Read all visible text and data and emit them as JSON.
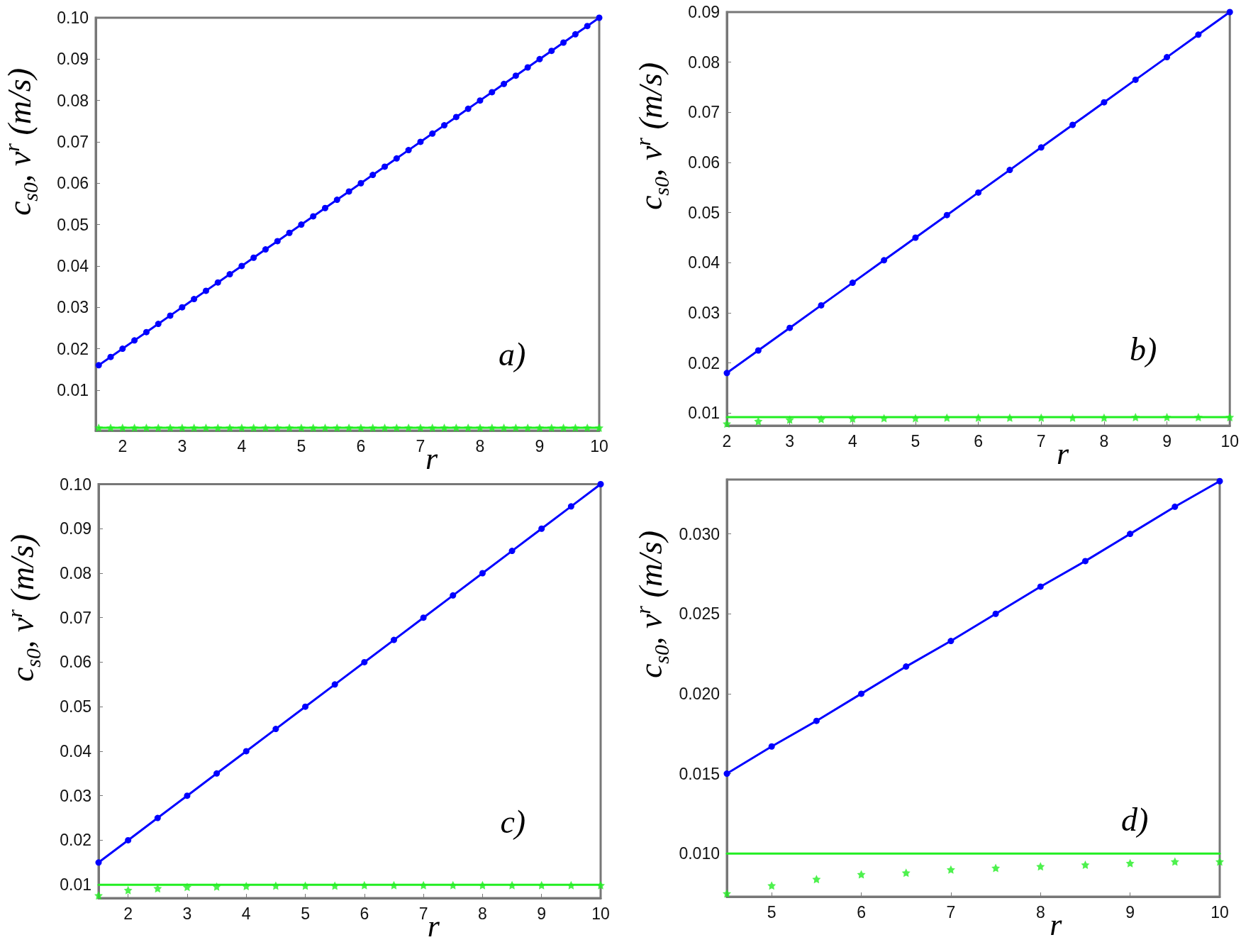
{
  "chart_data": [
    {
      "type": "line",
      "xlabel": "r",
      "ylabel": "c$_{s0}$, v$^{r}$ (m/s)",
      "annotations": [
        "a)"
      ],
      "xlim": [
        1.55,
        10
      ],
      "ylim": [
        0.0002,
        0.1
      ],
      "xticks": [
        2,
        3,
        4,
        5,
        6,
        7,
        8,
        9,
        10
      ],
      "yticks": [
        0.01,
        0.02,
        0.03,
        0.04,
        0.05,
        0.06,
        0.07,
        0.08,
        0.09,
        {
          "value": 0.1,
          "label": "0.10"
        }
      ],
      "grid": false,
      "series": [
        {
          "type": "line",
          "color": "#0000ff",
          "marker": "circle",
          "x": [
            1.6,
            1.8,
            2,
            2.2,
            2.4,
            2.6,
            2.8,
            3,
            3.2,
            3.4,
            3.6,
            3.8,
            4,
            4.2,
            4.4,
            4.6,
            4.8,
            5,
            5.2,
            5.4,
            5.6,
            5.8,
            6,
            6.2,
            6.4,
            6.6,
            6.8,
            7,
            7.2,
            7.4,
            7.6,
            7.8,
            8,
            8.2,
            8.4,
            8.6,
            8.8,
            9,
            9.2,
            9.4,
            9.6,
            9.8,
            10
          ],
          "values": [
            0.016,
            0.018,
            0.02,
            0.022,
            0.024,
            0.026,
            0.028,
            0.03,
            0.032,
            0.034,
            0.036,
            0.038,
            0.04,
            0.042,
            0.044,
            0.046,
            0.048,
            0.05,
            0.052,
            0.054,
            0.056,
            0.058,
            0.06,
            0.062,
            0.064,
            0.066,
            0.068,
            0.07,
            0.072,
            0.074,
            0.076,
            0.078,
            0.08,
            0.082,
            0.084,
            0.086,
            0.088,
            0.09,
            0.092,
            0.094,
            0.096,
            0.098,
            0.1
          ]
        },
        {
          "type": "line",
          "color": "#22ee22",
          "marker": "none",
          "x": [
            1.6,
            10
          ],
          "values": [
            0.0009,
            0.0009
          ]
        },
        {
          "type": "scatter",
          "color": "#22ee22",
          "marker": "star",
          "x": [
            1.6,
            1.8,
            2,
            2.2,
            2.4,
            2.6,
            2.8,
            3,
            3.2,
            3.4,
            3.6,
            3.8,
            4,
            4.2,
            4.4,
            4.6,
            4.8,
            5,
            5.2,
            5.4,
            5.6,
            5.8,
            6,
            6.2,
            6.4,
            6.6,
            6.8,
            7,
            7.2,
            7.4,
            7.6,
            7.8,
            8,
            8.2,
            8.4,
            8.6,
            8.8,
            9,
            9.2,
            9.4,
            9.6,
            9.8,
            10
          ],
          "values": [
            0.0009,
            0.0009,
            0.0009,
            0.0009,
            0.0009,
            0.0009,
            0.0009,
            0.0009,
            0.0009,
            0.0009,
            0.0009,
            0.0009,
            0.0009,
            0.0009,
            0.0009,
            0.0009,
            0.0009,
            0.0009,
            0.0009,
            0.0009,
            0.0009,
            0.0009,
            0.0009,
            0.0009,
            0.0009,
            0.0009,
            0.0009,
            0.0009,
            0.0009,
            0.0009,
            0.0009,
            0.0009,
            0.0009,
            0.0009,
            0.0009,
            0.0009,
            0.0009,
            0.0009,
            0.0009,
            0.0009,
            0.0009,
            0.0009,
            0.0009
          ]
        }
      ]
    },
    {
      "type": "line",
      "xlabel": "r",
      "ylabel": "c$_{s0}$, v$^{r}$ (m/s)",
      "annotations": [
        "b)"
      ],
      "xlim": [
        2,
        10
      ],
      "ylim": [
        0.0075,
        0.09
      ],
      "xticks": [
        2,
        3,
        4,
        5,
        6,
        7,
        8,
        9,
        10
      ],
      "yticks": [
        0.01,
        0.02,
        0.03,
        0.04,
        0.05,
        0.06,
        0.07,
        0.08,
        0.09
      ],
      "grid": false,
      "series": [
        {
          "type": "line",
          "color": "#0000ff",
          "marker": "circle",
          "x": [
            2,
            2.5,
            3,
            3.5,
            4,
            4.5,
            5,
            5.5,
            6,
            6.5,
            7,
            7.5,
            8,
            8.5,
            9,
            9.5,
            10
          ],
          "values": [
            0.018,
            0.0225,
            0.027,
            0.0315,
            0.036,
            0.0405,
            0.045,
            0.0495,
            0.054,
            0.0585,
            0.063,
            0.0675,
            0.072,
            0.0765,
            0.081,
            0.0855,
            0.09
          ]
        },
        {
          "type": "line",
          "color": "#22ee22",
          "marker": "none",
          "x": [
            2,
            10
          ],
          "values": [
            0.0092,
            0.0092
          ]
        },
        {
          "type": "scatter",
          "color": "#22ee22",
          "marker": "star",
          "x": [
            2,
            2.5,
            3,
            3.5,
            4,
            4.5,
            5,
            5.5,
            6,
            6.5,
            7,
            7.5,
            8,
            8.5,
            9,
            9.5,
            10
          ],
          "values": [
            0.0079,
            0.0084,
            0.0087,
            0.0088,
            0.0089,
            0.009,
            0.009,
            0.0091,
            0.0091,
            0.0091,
            0.0091,
            0.0091,
            0.0091,
            0.0092,
            0.0092,
            0.0092,
            0.0092
          ]
        }
      ]
    },
    {
      "type": "line",
      "xlabel": "r",
      "ylabel": "c$_{s0}$, v$^{r}$ (m/s)",
      "annotations": [
        "c)"
      ],
      "xlim": [
        1.5,
        10
      ],
      "ylim": [
        0.007,
        0.1
      ],
      "xticks": [
        2,
        3,
        4,
        5,
        6,
        7,
        8,
        9,
        10
      ],
      "yticks": [
        0.01,
        0.02,
        0.03,
        0.04,
        0.05,
        0.06,
        0.07,
        0.08,
        0.09,
        {
          "value": 0.1,
          "label": "0.10"
        }
      ],
      "grid": false,
      "series": [
        {
          "type": "line",
          "color": "#0000ff",
          "marker": "circle",
          "x": [
            1.5,
            2,
            2.5,
            3,
            3.5,
            4,
            4.5,
            5,
            5.5,
            6,
            6.5,
            7,
            7.5,
            8,
            8.5,
            9,
            9.5,
            10
          ],
          "values": [
            0.015,
            0.02,
            0.025,
            0.03,
            0.035,
            0.04,
            0.045,
            0.05,
            0.055,
            0.06,
            0.065,
            0.07,
            0.075,
            0.08,
            0.085,
            0.09,
            0.095,
            0.1
          ]
        },
        {
          "type": "line",
          "color": "#22ee22",
          "marker": "none",
          "x": [
            1.5,
            10
          ],
          "values": [
            0.01,
            0.01
          ]
        },
        {
          "type": "scatter",
          "color": "#22ee22",
          "marker": "star",
          "x": [
            1.5,
            2,
            2.5,
            3,
            3.5,
            4,
            4.5,
            5,
            5.5,
            6,
            6.5,
            7,
            7.5,
            8,
            8.5,
            9,
            9.5,
            10
          ],
          "values": [
            0.0076,
            0.0088,
            0.0092,
            0.0095,
            0.0096,
            0.0097,
            0.0098,
            0.0098,
            0.0098,
            0.0099,
            0.0099,
            0.0099,
            0.0099,
            0.0099,
            0.0099,
            0.0099,
            0.0099,
            0.0099
          ]
        }
      ]
    },
    {
      "type": "line",
      "xlabel": "r",
      "ylabel": "c$_{s0}$, v$^{r}$ (m/s)",
      "annotations": [
        "d)"
      ],
      "xlim": [
        4.5,
        10
      ],
      "ylim": [
        0.0073,
        0.0334
      ],
      "xticks": [
        5,
        6,
        7,
        8,
        9,
        10
      ],
      "yticks": [
        {
          "value": 0.01,
          "label": "0.010"
        },
        0.015,
        {
          "value": 0.02,
          "label": "0.020"
        },
        0.025,
        {
          "value": 0.03,
          "label": "0.030"
        }
      ],
      "grid": false,
      "series": [
        {
          "type": "line",
          "color": "#0000ff",
          "marker": "circle",
          "x": [
            4.5,
            5,
            5.5,
            6,
            6.5,
            7,
            7.5,
            8,
            8.5,
            9,
            9.5,
            10
          ],
          "values": [
            0.015,
            0.0167,
            0.0183,
            0.02,
            0.0217,
            0.0233,
            0.025,
            0.0267,
            0.0283,
            0.03,
            0.0317,
            0.0333
          ]
        },
        {
          "type": "line",
          "color": "#22ee22",
          "marker": "none",
          "x": [
            4.5,
            10
          ],
          "values": [
            0.01,
            0.01
          ]
        },
        {
          "type": "scatter",
          "color": "#22ee22",
          "marker": "star",
          "x": [
            4.5,
            5,
            5.5,
            6,
            6.5,
            7,
            7.5,
            8,
            8.5,
            9,
            9.5,
            10
          ],
          "values": [
            0.0075,
            0.008,
            0.0084,
            0.0087,
            0.0088,
            0.009,
            0.0091,
            0.0092,
            0.0093,
            0.0094,
            0.0095,
            0.0095
          ]
        }
      ]
    }
  ]
}
